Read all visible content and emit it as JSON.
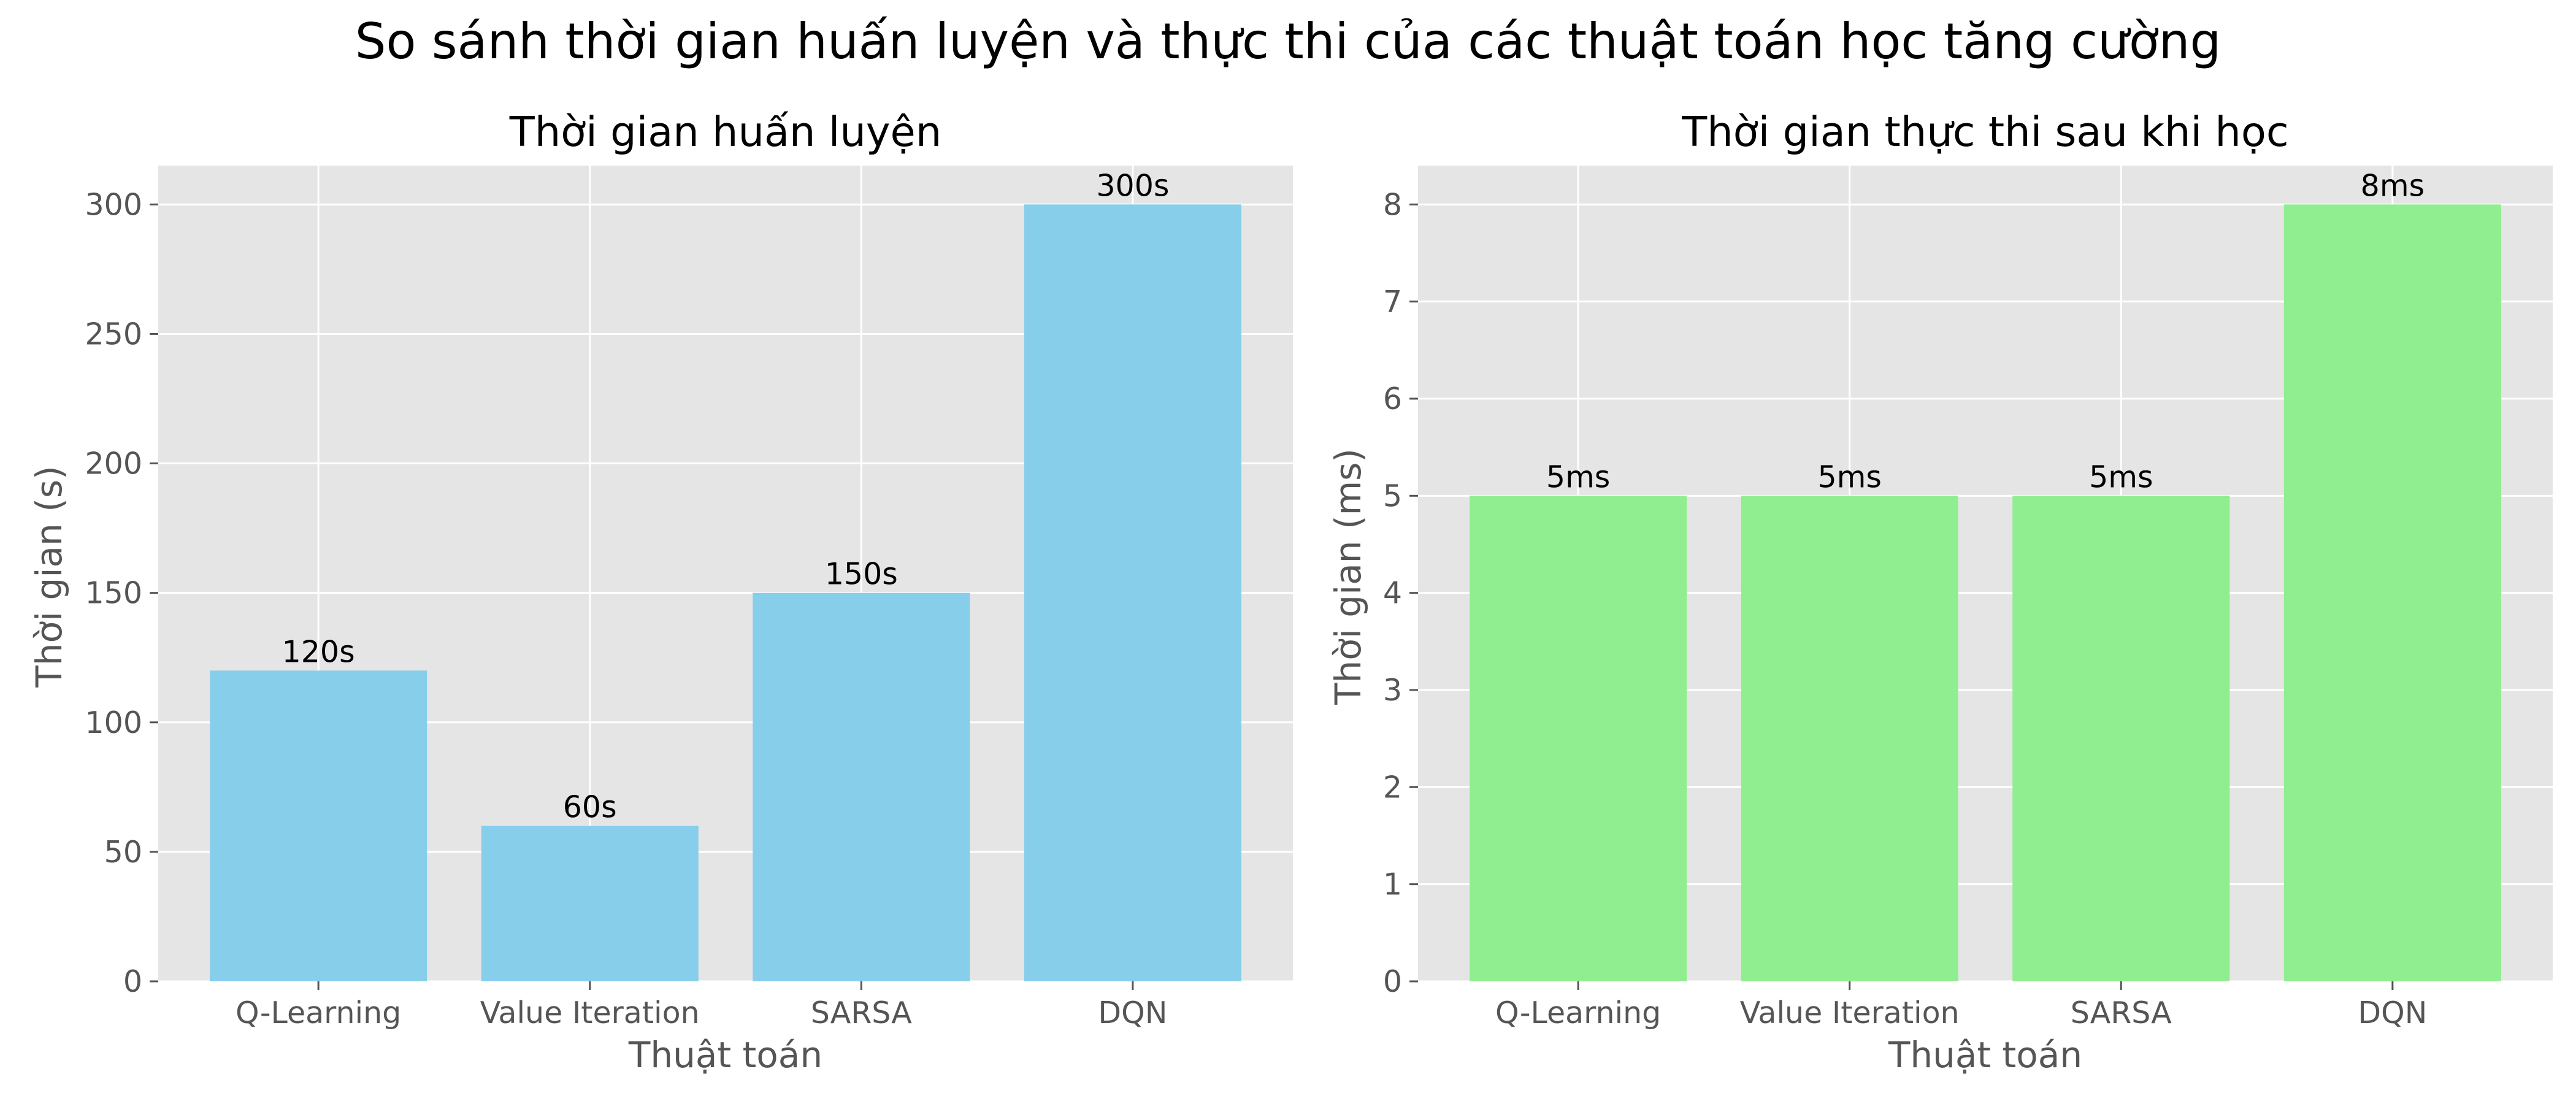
{
  "figure": {
    "title": "So sánh thời gian huấn luyện và thực thi của các thuật toán học tăng cường"
  },
  "chart_data": [
    {
      "type": "bar",
      "title": "Thời gian huấn luyện",
      "xlabel": "Thuật toán",
      "ylabel": "Thời gian (s)",
      "categories": [
        "Q-Learning",
        "Value Iteration",
        "SARSA",
        "DQN"
      ],
      "values": [
        120,
        60,
        150,
        300
      ],
      "data_labels": [
        "120s",
        "60s",
        "150s",
        "300s"
      ],
      "ylim": [
        0,
        315
      ],
      "yticks": [
        0,
        50,
        100,
        150,
        200,
        250,
        300
      ],
      "bar_color": "#87CEEB",
      "grid": true,
      "background": "#E5E5E5"
    },
    {
      "type": "bar",
      "title": "Thời gian thực thi sau khi học",
      "xlabel": "Thuật toán",
      "ylabel": "Thời gian (ms)",
      "categories": [
        "Q-Learning",
        "Value Iteration",
        "SARSA",
        "DQN"
      ],
      "values": [
        5,
        5,
        5,
        8
      ],
      "data_labels": [
        "5ms",
        "5ms",
        "5ms",
        "8ms"
      ],
      "ylim": [
        0,
        8.4
      ],
      "yticks": [
        0,
        1,
        2,
        3,
        4,
        5,
        6,
        7,
        8
      ],
      "bar_color": "#90EE90",
      "grid": true,
      "background": "#E5E5E5"
    }
  ]
}
